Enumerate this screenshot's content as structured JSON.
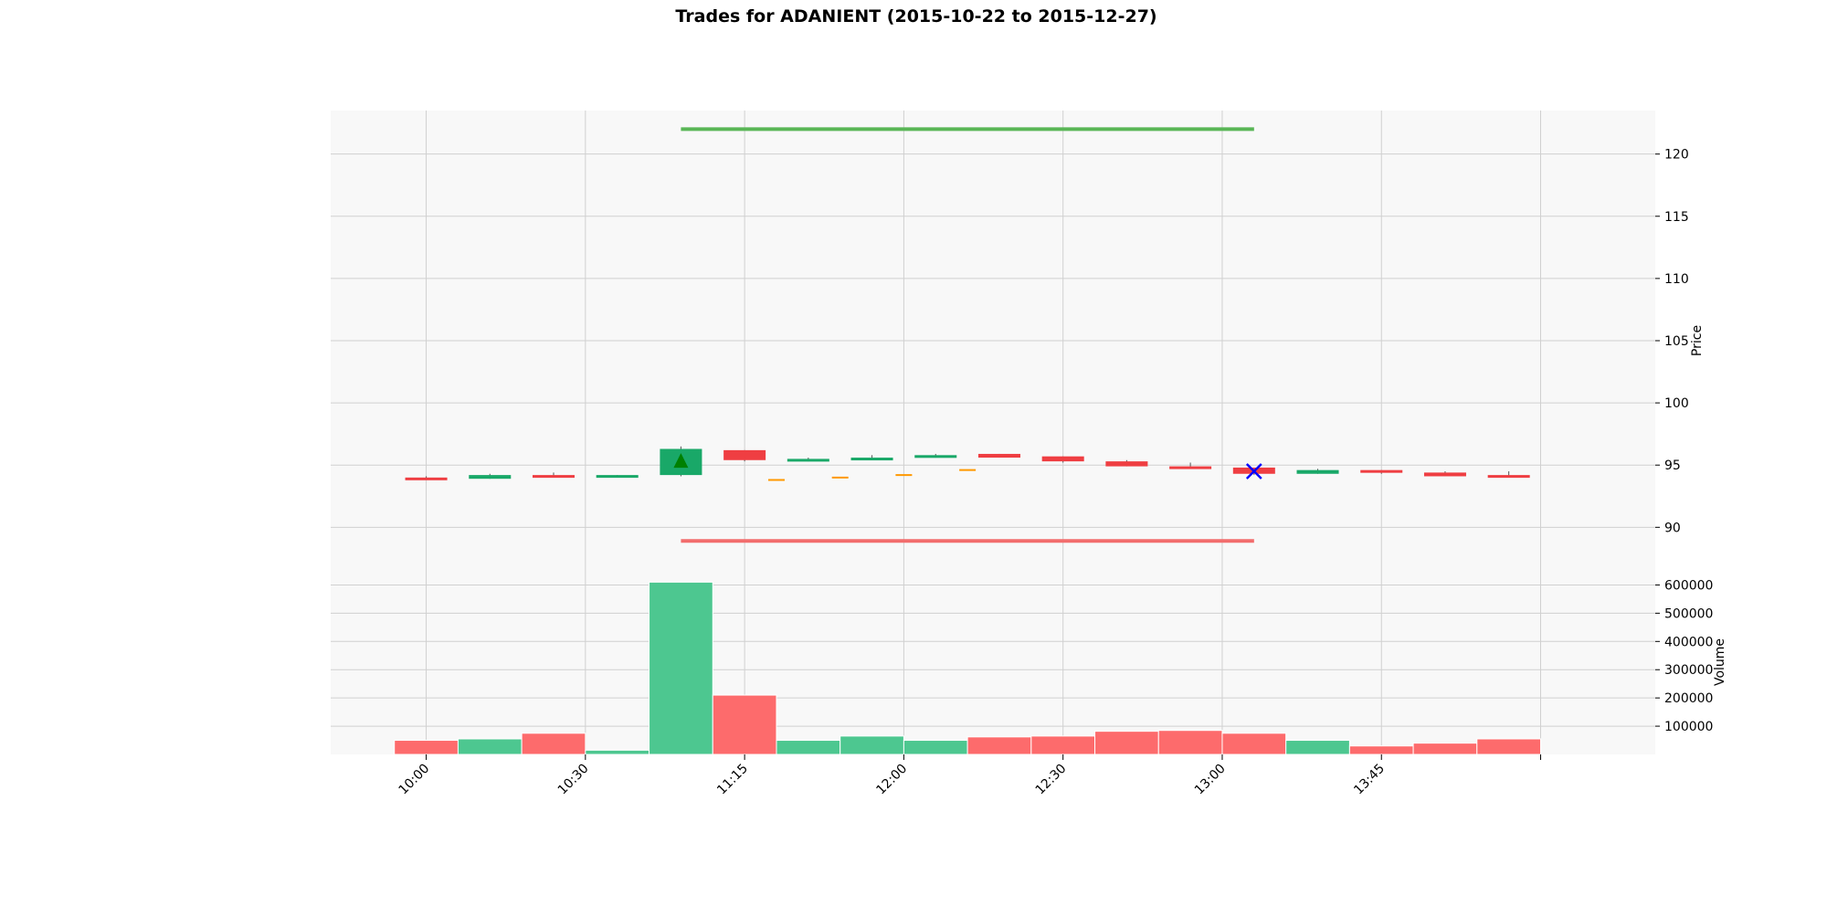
{
  "chart_data": {
    "type": "candlestick",
    "title": "Trades for ADANIENT (2015-10-22 to 2015-12-27)",
    "price_panel": {
      "ylabel": "Price",
      "ylim": [
        86.5,
        123.5
      ],
      "yticks": [
        90,
        95,
        100,
        105,
        110,
        115,
        120
      ],
      "grid": true
    },
    "volume_panel": {
      "ylabel": "Volume",
      "ylim": [
        0,
        650000
      ],
      "yticks": [
        100000,
        200000,
        300000,
        400000,
        500000,
        600000
      ],
      "grid": true
    },
    "xlim": [
      -1.5,
      19.3
    ],
    "xticks": [
      {
        "pos": 0,
        "label": "10:00"
      },
      {
        "pos": 2.5,
        "label": "10:30"
      },
      {
        "pos": 5,
        "label": "11:15"
      },
      {
        "pos": 7.5,
        "label": "12:00"
      },
      {
        "pos": 10,
        "label": "12:30"
      },
      {
        "pos": 12.5,
        "label": "13:00"
      },
      {
        "pos": 15,
        "label": "13:45"
      },
      {
        "pos": 17.5,
        "label": ""
      }
    ],
    "candles": [
      {
        "open": 94.0,
        "high": 94.1,
        "low": 93.9,
        "close": 93.9,
        "volume": 50000
      },
      {
        "open": 93.9,
        "high": 94.3,
        "low": 93.9,
        "close": 94.2,
        "volume": 55000
      },
      {
        "open": 94.2,
        "high": 94.4,
        "low": 94.0,
        "close": 94.1,
        "volume": 75000
      },
      {
        "open": 94.1,
        "high": 94.2,
        "low": 94.1,
        "close": 94.2,
        "volume": 15000
      },
      {
        "open": 94.2,
        "high": 96.5,
        "low": 94.1,
        "close": 96.3,
        "volume": 610000
      },
      {
        "open": 96.2,
        "high": 96.2,
        "low": 95.3,
        "close": 95.4,
        "volume": 210000
      },
      {
        "open": 95.3,
        "high": 95.6,
        "low": 95.3,
        "close": 95.5,
        "volume": 50000
      },
      {
        "open": 95.4,
        "high": 95.8,
        "low": 95.4,
        "close": 95.6,
        "volume": 65000
      },
      {
        "open": 95.6,
        "high": 95.9,
        "low": 95.6,
        "close": 95.8,
        "volume": 50000
      },
      {
        "open": 95.9,
        "high": 95.9,
        "low": 95.6,
        "close": 95.6,
        "volume": 62000
      },
      {
        "open": 95.7,
        "high": 95.7,
        "low": 95.2,
        "close": 95.3,
        "volume": 65000
      },
      {
        "open": 95.3,
        "high": 95.4,
        "low": 94.9,
        "close": 94.9,
        "volume": 82000
      },
      {
        "open": 94.9,
        "high": 95.2,
        "low": 94.7,
        "close": 94.7,
        "volume": 85000
      },
      {
        "open": 94.8,
        "high": 94.8,
        "low": 94.2,
        "close": 94.3,
        "volume": 75000
      },
      {
        "open": 94.3,
        "high": 94.7,
        "low": 94.3,
        "close": 94.6,
        "volume": 50000
      },
      {
        "open": 94.6,
        "high": 94.6,
        "low": 94.3,
        "close": 94.4,
        "volume": 30000
      },
      {
        "open": 94.4,
        "high": 94.5,
        "low": 94.1,
        "close": 94.1,
        "volume": 40000
      },
      {
        "open": 94.2,
        "high": 94.5,
        "low": 94.1,
        "close": 94.1,
        "volume": 55000
      }
    ],
    "extra_markers": [
      {
        "x": 5.5,
        "y": 93.8
      },
      {
        "x": 6.5,
        "y": 94.0
      },
      {
        "x": 7.5,
        "y": 94.2
      },
      {
        "x": 8.5,
        "y": 94.6
      }
    ],
    "entry_marker": {
      "x": 4,
      "y": 95.3
    },
    "exit_marker": {
      "x": 13,
      "y": 94.5
    },
    "target_line": {
      "x_start": 4,
      "x_end": 13,
      "y": 122.0
    },
    "stop_line": {
      "x_start": 4,
      "x_end": 13,
      "y": 88.9
    },
    "colors": {
      "up": "#19a868",
      "down": "#ef3e42",
      "vol_up": "#4dc790",
      "vol_down": "#fd6b6c",
      "extra_marker": "#ff9900",
      "entry": "#008000",
      "exit": "#0000ff",
      "target": "#59b656",
      "stop": "#f26d6d",
      "panel_bg": "#f8f8f8",
      "grid": "#d0d0d0"
    }
  }
}
